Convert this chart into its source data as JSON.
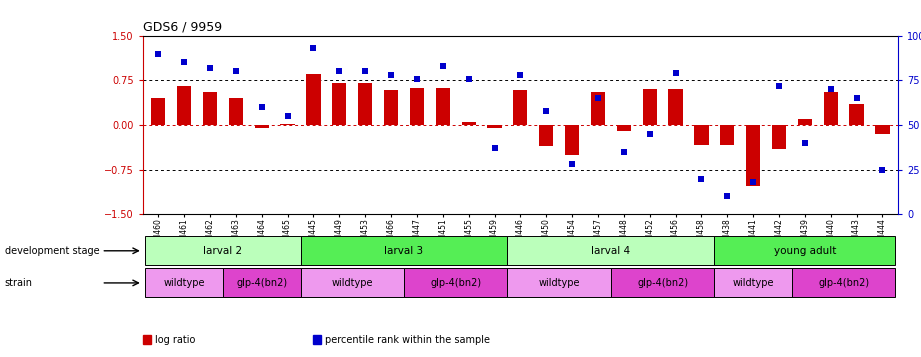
{
  "title": "GDS6 / 9959",
  "samples": [
    "GSM460",
    "GSM461",
    "GSM462",
    "GSM463",
    "GSM464",
    "GSM465",
    "GSM445",
    "GSM449",
    "GSM453",
    "GSM466",
    "GSM447",
    "GSM451",
    "GSM455",
    "GSM459",
    "GSM446",
    "GSM450",
    "GSM454",
    "GSM457",
    "GSM448",
    "GSM452",
    "GSM456",
    "GSM458",
    "GSM438",
    "GSM441",
    "GSM442",
    "GSM439",
    "GSM440",
    "GSM443",
    "GSM444"
  ],
  "log_ratio": [
    0.45,
    0.65,
    0.55,
    0.45,
    -0.05,
    0.02,
    0.85,
    0.7,
    0.7,
    0.58,
    0.62,
    0.62,
    0.05,
    -0.05,
    0.58,
    -0.35,
    -0.5,
    0.55,
    -0.1,
    0.6,
    0.6,
    -0.33,
    -0.33,
    -1.02,
    -0.4,
    0.1,
    0.55,
    0.35,
    -0.15
  ],
  "percentile": [
    90,
    85,
    82,
    80,
    60,
    55,
    93,
    80,
    80,
    78,
    76,
    83,
    76,
    37,
    78,
    58,
    28,
    65,
    35,
    45,
    79,
    20,
    10,
    18,
    72,
    40,
    70,
    65,
    25
  ],
  "bar_color": "#cc0000",
  "dot_color": "#0000cc",
  "ylim_left": [
    -1.5,
    1.5
  ],
  "ylim_right": [
    0,
    100
  ],
  "yticks_left": [
    -1.5,
    -0.75,
    0.0,
    0.75,
    1.5
  ],
  "yticks_right": [
    0,
    25,
    50,
    75,
    100
  ],
  "dev_stages": [
    {
      "label": "larval 2",
      "start": 0,
      "end": 6,
      "color": "#bbffbb"
    },
    {
      "label": "larval 3",
      "start": 6,
      "end": 14,
      "color": "#55ee55"
    },
    {
      "label": "larval 4",
      "start": 14,
      "end": 22,
      "color": "#bbffbb"
    },
    {
      "label": "young adult",
      "start": 22,
      "end": 29,
      "color": "#55ee55"
    }
  ],
  "strains": [
    {
      "label": "wildtype",
      "start": 0,
      "end": 3,
      "color": "#ee99ee"
    },
    {
      "label": "glp-4(bn2)",
      "start": 3,
      "end": 6,
      "color": "#dd44cc"
    },
    {
      "label": "wildtype",
      "start": 6,
      "end": 10,
      "color": "#ee99ee"
    },
    {
      "label": "glp-4(bn2)",
      "start": 10,
      "end": 14,
      "color": "#dd44cc"
    },
    {
      "label": "wildtype",
      "start": 14,
      "end": 18,
      "color": "#ee99ee"
    },
    {
      "label": "glp-4(bn2)",
      "start": 18,
      "end": 22,
      "color": "#dd44cc"
    },
    {
      "label": "wildtype",
      "start": 22,
      "end": 25,
      "color": "#ee99ee"
    },
    {
      "label": "glp-4(bn2)",
      "start": 25,
      "end": 29,
      "color": "#dd44cc"
    }
  ],
  "legend_items": [
    {
      "label": "log ratio",
      "color": "#cc0000"
    },
    {
      "label": "percentile rank within the sample",
      "color": "#0000cc"
    }
  ]
}
